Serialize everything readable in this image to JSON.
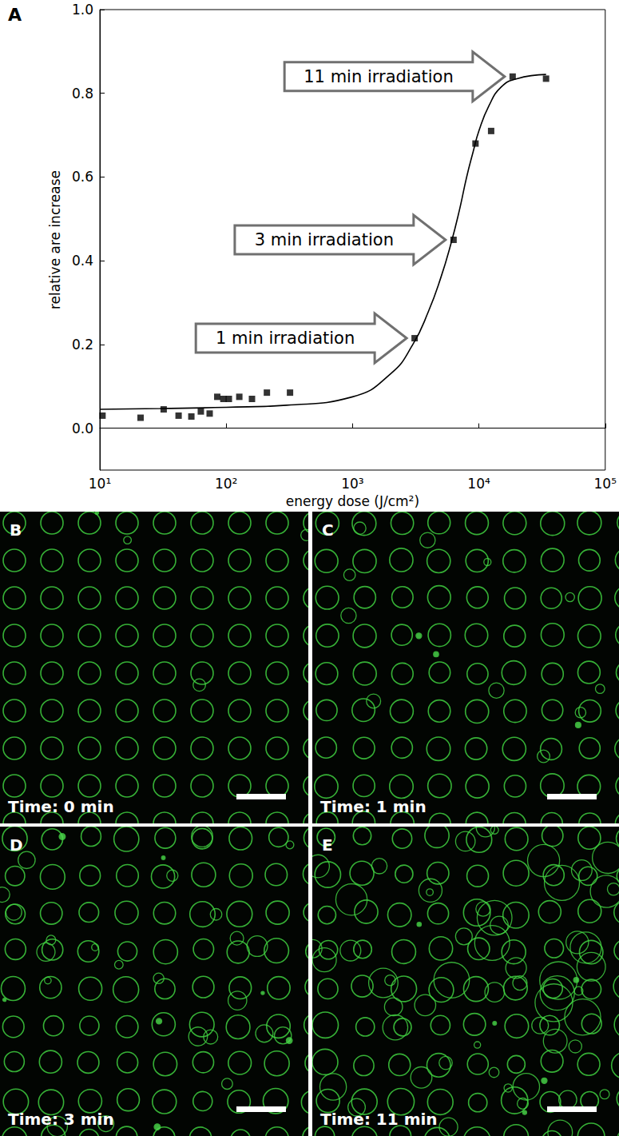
{
  "chart_data": {
    "type": "scatter",
    "xlabel": "energy dose (J/cm²)",
    "ylabel": "relative are increase",
    "log": "x",
    "grid": false,
    "xlim": [
      10,
      100000
    ],
    "xticks": [
      {
        "value": 10,
        "label": "10¹"
      },
      {
        "value": 100,
        "label": "10²"
      },
      {
        "value": 1000,
        "label": "10³"
      },
      {
        "value": 10000,
        "label": "10⁴"
      },
      {
        "value": 100000,
        "label": "10⁵"
      }
    ],
    "ylim": [
      -0.1,
      1.0
    ],
    "yticks": [
      {
        "value": 0,
        "label": "0.0"
      },
      {
        "value": 0.2,
        "label": "0.2"
      },
      {
        "value": 0.4,
        "label": "0.4"
      },
      {
        "value": 0.6,
        "label": "0.6"
      },
      {
        "value": 0.8,
        "label": "0.8"
      },
      {
        "value": 1.0,
        "label": "1.0"
      }
    ],
    "series": [
      {
        "type": "scatter",
        "marker": "square",
        "color": "#000000",
        "x": [
          10.5,
          21,
          32,
          42,
          53,
          63,
          74,
          85,
          95,
          105,
          127,
          160,
          210,
          320,
          3100,
          6300,
          9400,
          12500,
          18500,
          34000
        ],
        "values": [
          0.03,
          0.025,
          0.045,
          0.03,
          0.028,
          0.04,
          0.035,
          0.075,
          0.07,
          0.07,
          0.075,
          0.07,
          0.085,
          0.085,
          0.215,
          0.45,
          0.68,
          0.71,
          0.84,
          0.835
        ]
      },
      {
        "type": "line",
        "line_style": "solid",
        "color": "#000000",
        "x": [
          10,
          30,
          100,
          300,
          1000,
          2000,
          3000,
          4000,
          5000,
          6000,
          7000,
          8000,
          9000,
          10000,
          12000,
          15000,
          20000,
          34000
        ],
        "values": [
          0.045,
          0.047,
          0.05,
          0.055,
          0.075,
          0.13,
          0.2,
          0.28,
          0.36,
          0.44,
          0.52,
          0.6,
          0.66,
          0.71,
          0.77,
          0.815,
          0.835,
          0.845
        ]
      }
    ],
    "annotations": [
      {
        "text": "1 min irradiation",
        "x": 3100,
        "y": 0.215
      },
      {
        "text": "3 min irradiation",
        "x": 6300,
        "y": 0.45
      },
      {
        "text": "11 min irradiation",
        "x": 18500,
        "y": 0.84
      }
    ]
  },
  "figure": {
    "chart_letter": "A",
    "images": [
      {
        "letter": "B",
        "caption": "Time: 0 min"
      },
      {
        "letter": "C",
        "caption": "Time: 1 min"
      },
      {
        "letter": "D",
        "caption": "Time: 3 min"
      },
      {
        "letter": "E",
        "caption": "Time: 11 min"
      }
    ]
  }
}
